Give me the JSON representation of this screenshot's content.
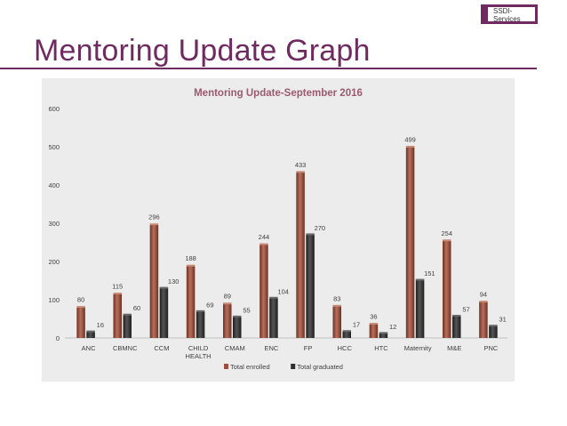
{
  "header": {
    "badge_text": "SSDI-\nServices",
    "page_title": "Mentoring Update Graph"
  },
  "colors": {
    "brand": "#6f2a5f",
    "enrolled": "#9b4f3c",
    "graduated": "#2f2f2f",
    "panel": "#ececec"
  },
  "chart_data": {
    "type": "bar",
    "title": "Mentoring Update-September 2016",
    "categories": [
      "ANC",
      "CBMNC",
      "CCM",
      "CHILD HEALTH",
      "CMAM",
      "ENC",
      "FP",
      "HCC",
      "HTC",
      "Maternity",
      "M&E",
      "PNC"
    ],
    "series": [
      {
        "name": "Total enrolled",
        "values": [
          80,
          115,
          296,
          188,
          89,
          244,
          433,
          83,
          36,
          499,
          254,
          94
        ]
      },
      {
        "name": "Total graduated",
        "values": [
          16,
          60,
          130,
          69,
          55,
          104,
          270,
          17,
          12,
          151,
          57,
          31
        ]
      }
    ],
    "ylim": [
      0,
      600
    ],
    "yticks": [
      0,
      100,
      200,
      300,
      400,
      500,
      600
    ],
    "grid": false,
    "legend": "bottom"
  }
}
